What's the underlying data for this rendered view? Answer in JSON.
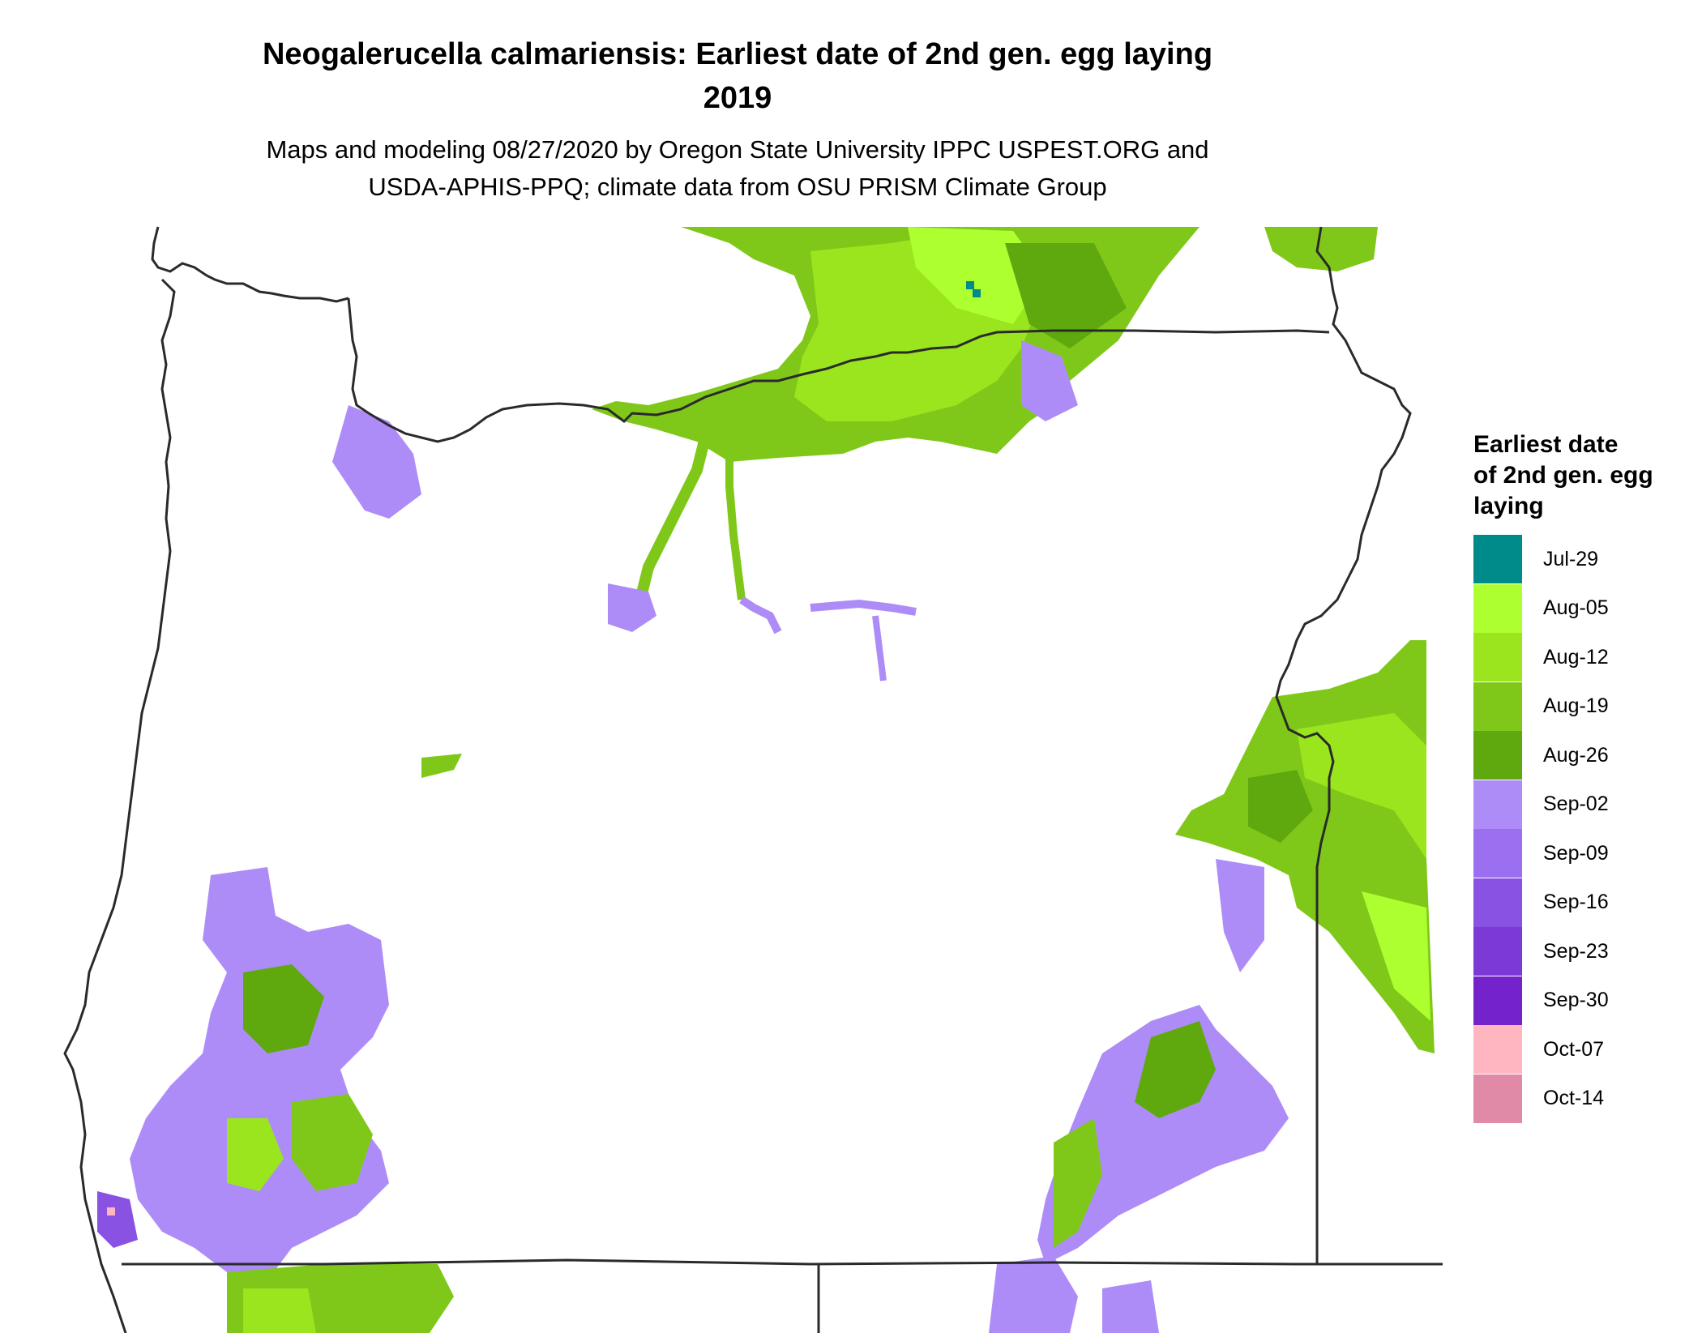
{
  "title_line1": "Neogalerucella calmariensis: Earliest date of 2nd gen. egg laying",
  "title_line2": "2019",
  "subtitle_line1": "Maps and modeling 08/27/2020 by Oregon State University IPPC USPEST.ORG and",
  "subtitle_line2": "USDA-APHIS-PPQ; climate data from OSU PRISM Climate Group",
  "legend": {
    "title": "Earliest date\nof 2nd gen. egg\nlaying",
    "items": [
      {
        "label": "Jul-29",
        "color": "#008b8b"
      },
      {
        "label": "Aug-05",
        "color": "#adff2f"
      },
      {
        "label": "Aug-12",
        "color": "#9ae51e"
      },
      {
        "label": "Aug-19",
        "color": "#7fc81a"
      },
      {
        "label": "Aug-26",
        "color": "#5fa90f"
      },
      {
        "label": "Sep-02",
        "color": "#ae8cf8"
      },
      {
        "label": "Sep-09",
        "color": "#9b6ff0"
      },
      {
        "label": "Sep-16",
        "color": "#8a52e3"
      },
      {
        "label": "Sep-23",
        "color": "#7d39d6"
      },
      {
        "label": "Sep-30",
        "color": "#7322cc"
      },
      {
        "label": "Oct-07",
        "color": "#ffb6c1"
      },
      {
        "label": "Oct-14",
        "color": "#e18aa7"
      }
    ]
  }
}
